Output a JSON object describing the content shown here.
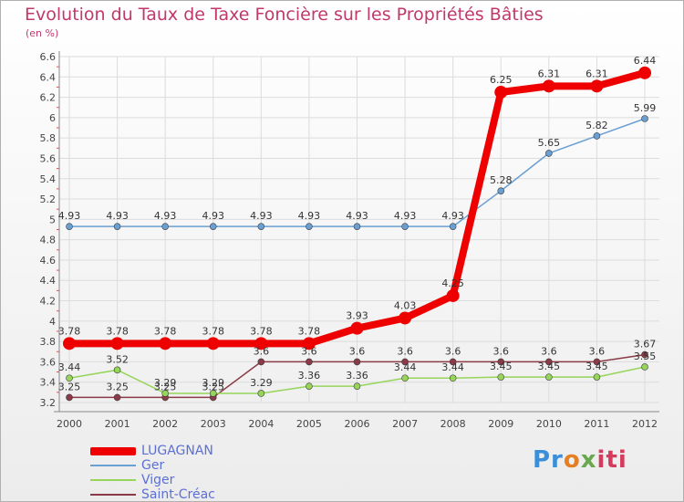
{
  "chart_data": {
    "type": "line",
    "title": "Evolution du Taux de Taxe Foncière sur les Propriétés Bâties",
    "subtitle": "(en %)",
    "xlabel": "",
    "ylabel": "",
    "categories": [
      "2000",
      "2001",
      "2002",
      "2003",
      "2004",
      "2005",
      "2006",
      "2007",
      "2008",
      "2009",
      "2010",
      "2011",
      "2012"
    ],
    "ylim": [
      3.2,
      6.6
    ],
    "yticks": [
      3.2,
      3.4,
      3.6,
      3.8,
      4,
      4.2,
      4.4,
      4.6,
      4.8,
      5,
      5.2,
      5.4,
      5.6,
      5.8,
      6,
      6.2,
      6.4,
      6.6
    ],
    "grid": true,
    "legend_position": "bottom-left",
    "series": [
      {
        "name": "LUGAGNAN",
        "color": "#ee0000",
        "values": [
          3.78,
          3.78,
          3.78,
          3.78,
          3.78,
          3.78,
          3.93,
          4.03,
          4.25,
          6.25,
          6.31,
          6.31,
          6.44
        ],
        "labels": [
          "3.78",
          "3.78",
          "3.78",
          "3.78",
          "3.78",
          "3.78",
          "3.93",
          "4.03",
          "4.25",
          "6.25",
          "6.31",
          "6.31",
          "6.44"
        ]
      },
      {
        "name": "Ger",
        "color": "#6a9fd4",
        "values": [
          4.93,
          4.93,
          4.93,
          4.93,
          4.93,
          4.93,
          4.93,
          4.93,
          4.93,
          5.28,
          5.65,
          5.82,
          5.99
        ],
        "labels": [
          "4.93",
          "4.93",
          "4.93",
          "4.93",
          "4.93",
          "4.93",
          "4.93",
          "4.93",
          "4.93",
          "5.28",
          "5.65",
          "5.82",
          "5.99"
        ]
      },
      {
        "name": "Viger",
        "color": "#96d55a",
        "values": [
          3.44,
          3.52,
          3.29,
          3.29,
          3.29,
          3.36,
          3.36,
          3.44,
          3.44,
          3.45,
          3.45,
          3.45,
          3.55
        ],
        "labels": [
          "3.44",
          "3.52",
          "3.29",
          "3.29",
          "3.29",
          "3.36",
          "3.36",
          "3.44",
          "3.44",
          "3.45",
          "3.45",
          "3.45",
          "3.55"
        ]
      },
      {
        "name": "Saint-Créac",
        "color": "#8a3b47",
        "values": [
          3.25,
          3.25,
          3.25,
          3.25,
          3.6,
          3.6,
          3.6,
          3.6,
          3.6,
          3.6,
          3.6,
          3.6,
          3.67
        ],
        "labels": [
          "3.25",
          "3.25",
          "3.25",
          "3.25",
          "3.6",
          "3.6",
          "3.6",
          "3.6",
          "3.6",
          "3.6",
          "3.6",
          "3.6",
          "3.67"
        ]
      }
    ]
  },
  "branding": {
    "logo_text": [
      "Pr",
      "o",
      "x",
      "iti"
    ]
  }
}
